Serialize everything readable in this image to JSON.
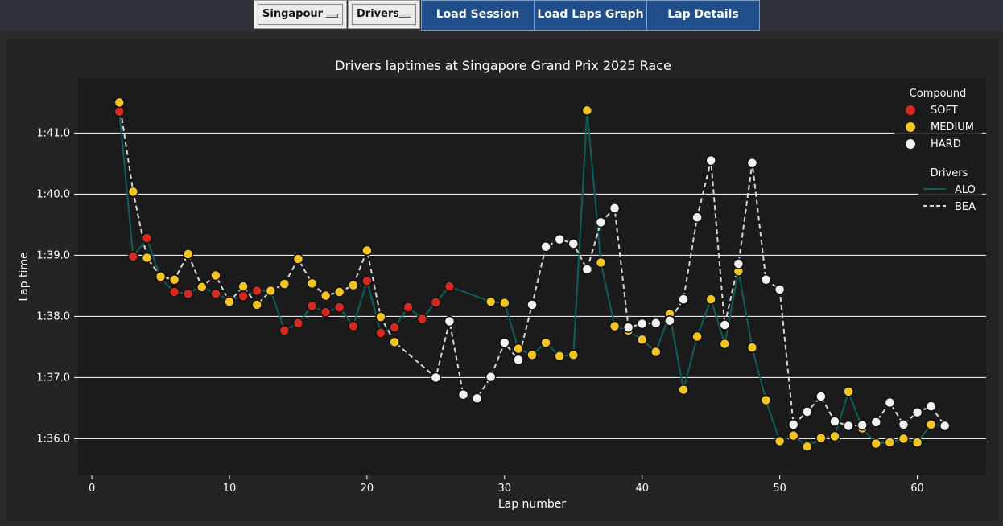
{
  "toolbar": {
    "race_select": "Singapour",
    "driver_select": "Drivers",
    "load_session": "Load Session",
    "load_laps_graph": "Load Laps Graph",
    "lap_details": "Lap Details"
  },
  "colors": {
    "background": "#262422",
    "plot_area": "#1c1b1b",
    "alo_line": "#0e5e5c",
    "bea_line": "#d7d7d7",
    "soft": "#d22a20",
    "medium": "#f2c523",
    "hard": "#f2f2f2",
    "button": "#1f4e8a"
  },
  "chart_data": {
    "type": "line",
    "title": "Drivers laptimes at Singapore Grand Prix 2025 Race",
    "xlabel": "Lap number",
    "ylabel": "Lap time",
    "xlim": [
      -1,
      65
    ],
    "ylim": [
      95.4,
      101.9
    ],
    "x_ticks": [
      0,
      10,
      20,
      30,
      40,
      50,
      60
    ],
    "y_ticks": [
      {
        "value": 96,
        "label": "1:36.0"
      },
      {
        "value": 97,
        "label": "1:37.0"
      },
      {
        "value": 98,
        "label": "1:38.0"
      },
      {
        "value": 99,
        "label": "1:39.0"
      },
      {
        "value": 100,
        "label": "1:40.0"
      },
      {
        "value": 101,
        "label": "1:41.0"
      }
    ],
    "grid": "horizontal",
    "legend_compound": {
      "title": "Compound",
      "placement": "top-right",
      "entries": [
        {
          "label": "SOFT",
          "compound": "S"
        },
        {
          "label": "MEDIUM",
          "compound": "M"
        },
        {
          "label": "HARD",
          "compound": "H"
        }
      ]
    },
    "legend_drivers": {
      "title": "Drivers",
      "placement": "top-right",
      "entries": [
        {
          "label": "ALO",
          "style": "solid"
        },
        {
          "label": "BEA",
          "style": "dashed"
        }
      ]
    },
    "series": [
      {
        "name": "ALO",
        "style": "solid",
        "points": [
          {
            "x": 2,
            "y": 101.35,
            "c": "S"
          },
          {
            "x": 3,
            "y": 98.98,
            "c": "S"
          },
          {
            "x": 4,
            "y": 99.28,
            "c": "S"
          },
          {
            "x": 5,
            "y": 98.62,
            "c": "S"
          },
          {
            "x": 6,
            "y": 98.4,
            "c": "S"
          },
          {
            "x": 7,
            "y": 98.37,
            "c": "S"
          },
          {
            "x": 8,
            "y": 98.5,
            "c": "S"
          },
          {
            "x": 9,
            "y": 98.37,
            "c": "S"
          },
          {
            "x": 10,
            "y": 98.27,
            "c": "S"
          },
          {
            "x": 11,
            "y": 98.33,
            "c": "S"
          },
          {
            "x": 12,
            "y": 98.42,
            "c": "S"
          },
          {
            "x": 13,
            "y": 98.42,
            "c": "S"
          },
          {
            "x": 14,
            "y": 97.77,
            "c": "S"
          },
          {
            "x": 15,
            "y": 97.89,
            "c": "S"
          },
          {
            "x": 16,
            "y": 98.17,
            "c": "S"
          },
          {
            "x": 17,
            "y": 98.07,
            "c": "S"
          },
          {
            "x": 18,
            "y": 98.15,
            "c": "S"
          },
          {
            "x": 19,
            "y": 97.84,
            "c": "S"
          },
          {
            "x": 20,
            "y": 98.58,
            "c": "S"
          },
          {
            "x": 21,
            "y": 97.73,
            "c": "S"
          },
          {
            "x": 22,
            "y": 97.82,
            "c": "S"
          },
          {
            "x": 23,
            "y": 98.15,
            "c": "S"
          },
          {
            "x": 24,
            "y": 97.96,
            "c": "S"
          },
          {
            "x": 25,
            "y": 98.23,
            "c": "S"
          },
          {
            "x": 26,
            "y": 98.49,
            "c": "S"
          },
          {
            "x": 29,
            "y": 98.24,
            "c": "M"
          },
          {
            "x": 30,
            "y": 98.22,
            "c": "M"
          },
          {
            "x": 31,
            "y": 97.47,
            "c": "M"
          },
          {
            "x": 32,
            "y": 97.37,
            "c": "M"
          },
          {
            "x": 33,
            "y": 97.57,
            "c": "M"
          },
          {
            "x": 34,
            "y": 97.35,
            "c": "M"
          },
          {
            "x": 35,
            "y": 97.37,
            "c": "M"
          },
          {
            "x": 36,
            "y": 101.37,
            "c": "M"
          },
          {
            "x": 37,
            "y": 98.88,
            "c": "M"
          },
          {
            "x": 38,
            "y": 97.84,
            "c": "M"
          },
          {
            "x": 39,
            "y": 97.77,
            "c": "M"
          },
          {
            "x": 40,
            "y": 97.62,
            "c": "M"
          },
          {
            "x": 41,
            "y": 97.42,
            "c": "M"
          },
          {
            "x": 42,
            "y": 98.04,
            "c": "M"
          },
          {
            "x": 43,
            "y": 96.8,
            "c": "M"
          },
          {
            "x": 44,
            "y": 97.67,
            "c": "M"
          },
          {
            "x": 45,
            "y": 98.28,
            "c": "M"
          },
          {
            "x": 46,
            "y": 97.55,
            "c": "M"
          },
          {
            "x": 47,
            "y": 98.74,
            "c": "M"
          },
          {
            "x": 48,
            "y": 97.49,
            "c": "M"
          },
          {
            "x": 49,
            "y": 96.63,
            "c": "M"
          },
          {
            "x": 50,
            "y": 95.96,
            "c": "M"
          },
          {
            "x": 51,
            "y": 96.05,
            "c": "M"
          },
          {
            "x": 52,
            "y": 95.87,
            "c": "M"
          },
          {
            "x": 53,
            "y": 96.01,
            "c": "M"
          },
          {
            "x": 54,
            "y": 96.04,
            "c": "M"
          },
          {
            "x": 55,
            "y": 96.77,
            "c": "M"
          },
          {
            "x": 56,
            "y": 96.17,
            "c": "M"
          },
          {
            "x": 57,
            "y": 95.92,
            "c": "M"
          },
          {
            "x": 58,
            "y": 95.94,
            "c": "M"
          },
          {
            "x": 59,
            "y": 96.0,
            "c": "M"
          },
          {
            "x": 60,
            "y": 95.94,
            "c": "M"
          },
          {
            "x": 61,
            "y": 96.23,
            "c": "M"
          },
          {
            "x": 62,
            "y": 96.21,
            "c": "H"
          }
        ]
      },
      {
        "name": "BEA",
        "style": "dashed",
        "points": [
          {
            "x": 2,
            "y": 101.5,
            "c": "M"
          },
          {
            "x": 3,
            "y": 100.04,
            "c": "M"
          },
          {
            "x": 4,
            "y": 98.96,
            "c": "M"
          },
          {
            "x": 5,
            "y": 98.65,
            "c": "M"
          },
          {
            "x": 6,
            "y": 98.6,
            "c": "M"
          },
          {
            "x": 7,
            "y": 99.02,
            "c": "M"
          },
          {
            "x": 8,
            "y": 98.48,
            "c": "M"
          },
          {
            "x": 9,
            "y": 98.67,
            "c": "M"
          },
          {
            "x": 10,
            "y": 98.24,
            "c": "M"
          },
          {
            "x": 11,
            "y": 98.49,
            "c": "M"
          },
          {
            "x": 12,
            "y": 98.19,
            "c": "M"
          },
          {
            "x": 13,
            "y": 98.42,
            "c": "M"
          },
          {
            "x": 14,
            "y": 98.53,
            "c": "M"
          },
          {
            "x": 15,
            "y": 98.94,
            "c": "M"
          },
          {
            "x": 16,
            "y": 98.54,
            "c": "M"
          },
          {
            "x": 17,
            "y": 98.34,
            "c": "M"
          },
          {
            "x": 18,
            "y": 98.4,
            "c": "M"
          },
          {
            "x": 19,
            "y": 98.51,
            "c": "M"
          },
          {
            "x": 20,
            "y": 99.08,
            "c": "M"
          },
          {
            "x": 21,
            "y": 97.99,
            "c": "M"
          },
          {
            "x": 22,
            "y": 97.58,
            "c": "M"
          },
          {
            "x": 25,
            "y": 97.0,
            "c": "H"
          },
          {
            "x": 26,
            "y": 97.92,
            "c": "H"
          },
          {
            "x": 27,
            "y": 96.72,
            "c": "H"
          },
          {
            "x": 28,
            "y": 96.66,
            "c": "H"
          },
          {
            "x": 29,
            "y": 97.01,
            "c": "H"
          },
          {
            "x": 30,
            "y": 97.57,
            "c": "H"
          },
          {
            "x": 31,
            "y": 97.29,
            "c": "H"
          },
          {
            "x": 32,
            "y": 98.19,
            "c": "H"
          },
          {
            "x": 33,
            "y": 99.14,
            "c": "H"
          },
          {
            "x": 34,
            "y": 99.26,
            "c": "H"
          },
          {
            "x": 35,
            "y": 99.19,
            "c": "H"
          },
          {
            "x": 36,
            "y": 98.77,
            "c": "H"
          },
          {
            "x": 37,
            "y": 99.54,
            "c": "H"
          },
          {
            "x": 38,
            "y": 99.77,
            "c": "H"
          },
          {
            "x": 39,
            "y": 97.82,
            "c": "H"
          },
          {
            "x": 40,
            "y": 97.88,
            "c": "H"
          },
          {
            "x": 41,
            "y": 97.89,
            "c": "H"
          },
          {
            "x": 42,
            "y": 97.93,
            "c": "H"
          },
          {
            "x": 43,
            "y": 98.28,
            "c": "H"
          },
          {
            "x": 44,
            "y": 99.62,
            "c": "H"
          },
          {
            "x": 45,
            "y": 100.55,
            "c": "H"
          },
          {
            "x": 46,
            "y": 97.86,
            "c": "H"
          },
          {
            "x": 47,
            "y": 98.86,
            "c": "H"
          },
          {
            "x": 48,
            "y": 100.51,
            "c": "H"
          },
          {
            "x": 49,
            "y": 98.6,
            "c": "H"
          },
          {
            "x": 50,
            "y": 98.44,
            "c": "H"
          },
          {
            "x": 51,
            "y": 96.23,
            "c": "H"
          },
          {
            "x": 52,
            "y": 96.44,
            "c": "H"
          },
          {
            "x": 53,
            "y": 96.69,
            "c": "H"
          },
          {
            "x": 54,
            "y": 96.28,
            "c": "H"
          },
          {
            "x": 55,
            "y": 96.21,
            "c": "H"
          },
          {
            "x": 56,
            "y": 96.22,
            "c": "H"
          },
          {
            "x": 57,
            "y": 96.27,
            "c": "H"
          },
          {
            "x": 58,
            "y": 96.59,
            "c": "H"
          },
          {
            "x": 59,
            "y": 96.23,
            "c": "H"
          },
          {
            "x": 60,
            "y": 96.43,
            "c": "H"
          },
          {
            "x": 61,
            "y": 96.53,
            "c": "H"
          },
          {
            "x": 62,
            "y": 96.21,
            "c": "H"
          }
        ]
      }
    ]
  }
}
